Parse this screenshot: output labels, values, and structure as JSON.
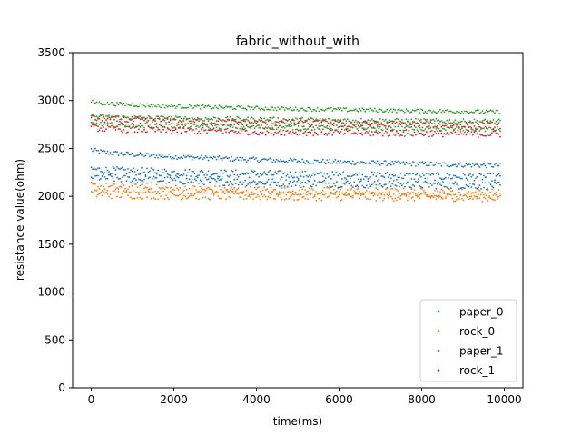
{
  "chart_data": {
    "type": "scatter",
    "title": "fabric_without_with",
    "xlabel": "time(ms)",
    "ylabel": "resistance value(ohm)",
    "xlim": [
      -450,
      10450
    ],
    "ylim": [
      0,
      3500
    ],
    "xticks": [
      0,
      2000,
      4000,
      6000,
      8000,
      10000
    ],
    "yticks": [
      0,
      500,
      1000,
      1500,
      2000,
      2500,
      3000,
      3500
    ],
    "grid": false,
    "legend_position": "lower right",
    "x_range": [
      0,
      9900
    ],
    "x_step_approx": 33,
    "series": [
      {
        "name": "paper_0",
        "color": "#1f77b4",
        "bands": [
          {
            "y_start": 2490,
            "y_end": 2320,
            "spread": 25
          },
          {
            "y_start": 2290,
            "y_end": 2200,
            "spread": 40
          },
          {
            "y_start": 2210,
            "y_end": 2110,
            "spread": 40
          }
        ]
      },
      {
        "name": "rock_0",
        "color": "#ff7f0e",
        "bands": [
          {
            "y_start": 2110,
            "y_end": 2030,
            "spread": 45
          },
          {
            "y_start": 2030,
            "y_end": 1990,
            "spread": 45
          }
        ]
      },
      {
        "name": "paper_1",
        "color": "#2ca02c",
        "bands": [
          {
            "y_start": 2990,
            "y_end": 2880,
            "spread": 20
          },
          {
            "y_start": 2840,
            "y_end": 2780,
            "spread": 25
          },
          {
            "y_start": 2760,
            "y_end": 2700,
            "spread": 25
          }
        ]
      },
      {
        "name": "rock_1",
        "color": "#d62728",
        "bands": [
          {
            "y_start": 2820,
            "y_end": 2740,
            "spread": 35
          },
          {
            "y_start": 2720,
            "y_end": 2650,
            "spread": 35
          }
        ]
      }
    ]
  }
}
